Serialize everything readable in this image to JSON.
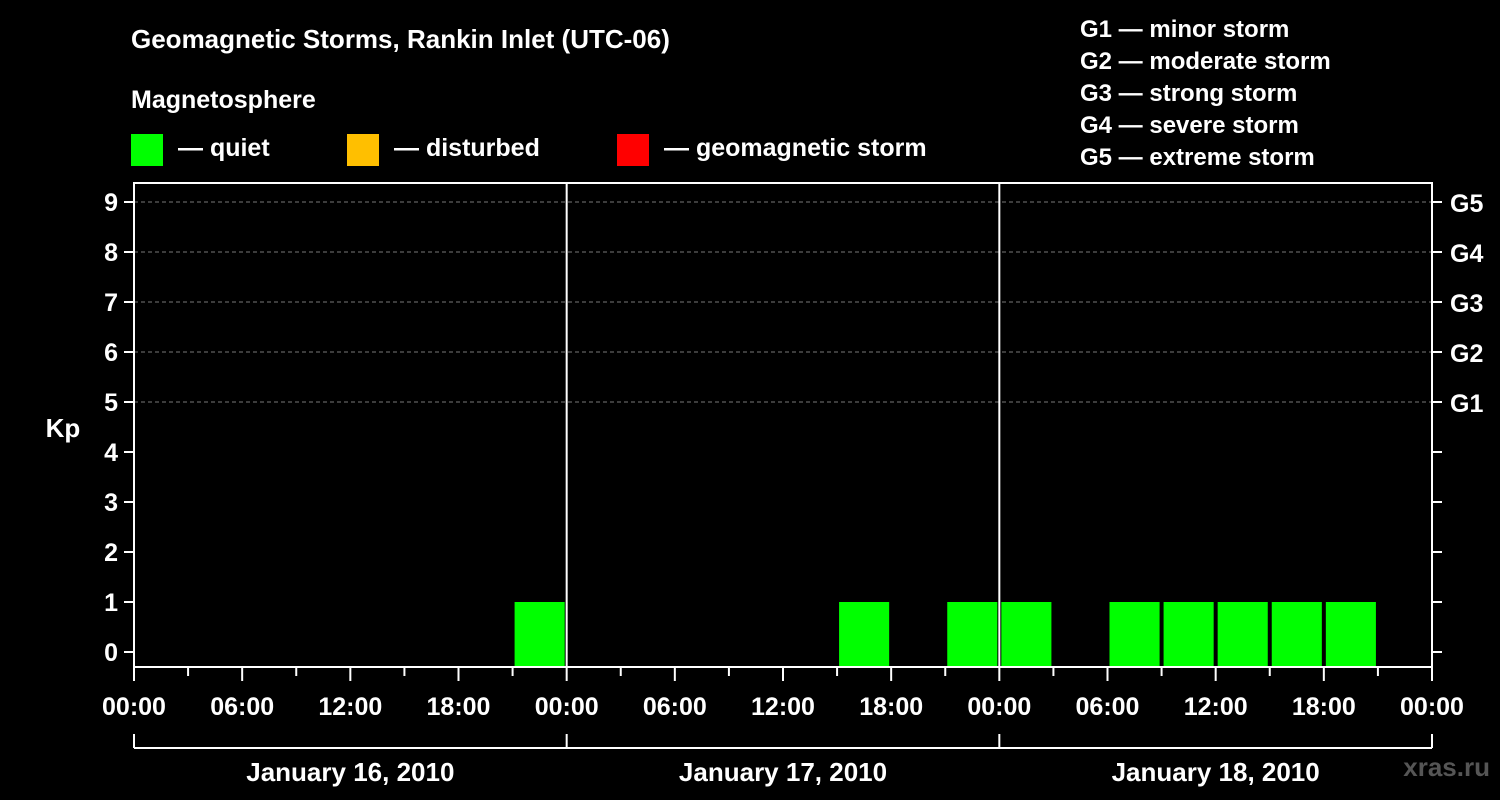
{
  "title": "Geomagnetic Storms, Rankin Inlet (UTC-06)",
  "magnetosphere_label": "Magnetosphere",
  "legend": [
    {
      "label": "— quiet",
      "color": "#00ff00"
    },
    {
      "label": "— disturbed",
      "color": "#ffbf00"
    },
    {
      "label": "— geomagnetic storm",
      "color": "#ff0000"
    }
  ],
  "g_scale": [
    "G1 — minor storm",
    "G2 — moderate storm",
    "G3 — strong storm",
    "G4 — severe storm",
    "G5 — extreme storm"
  ],
  "credit": "xras.ru",
  "chart_data": {
    "type": "bar",
    "ylabel": "Kp",
    "ylim": [
      0,
      9
    ],
    "y_ticks": [
      0,
      1,
      2,
      3,
      4,
      5,
      6,
      7,
      8,
      9
    ],
    "right_axis_labels": [
      {
        "kp": 5,
        "label": "G1"
      },
      {
        "kp": 6,
        "label": "G2"
      },
      {
        "kp": 7,
        "label": "G3"
      },
      {
        "kp": 8,
        "label": "G4"
      },
      {
        "kp": 9,
        "label": "G5"
      }
    ],
    "x_tick_labels": [
      "00:00",
      "06:00",
      "12:00",
      "18:00",
      "00:00",
      "06:00",
      "12:00",
      "18:00",
      "00:00",
      "06:00",
      "12:00",
      "18:00",
      "00:00"
    ],
    "days": [
      "January 16, 2010",
      "January 17, 2010",
      "January 18, 2010"
    ],
    "grid": "dashed horizontal at Kp 5-9",
    "bars": [
      {
        "day": "January 16, 2010",
        "start_hour": 21,
        "kp": 1,
        "status": "quiet"
      },
      {
        "day": "January 17, 2010",
        "start_hour": 15,
        "kp": 1,
        "status": "quiet"
      },
      {
        "day": "January 17, 2010",
        "start_hour": 21,
        "kp": 1,
        "status": "quiet"
      },
      {
        "day": "January 18, 2010",
        "start_hour": 0,
        "kp": 1,
        "status": "quiet"
      },
      {
        "day": "January 18, 2010",
        "start_hour": 6,
        "kp": 1,
        "status": "quiet"
      },
      {
        "day": "January 18, 2010",
        "start_hour": 9,
        "kp": 1,
        "status": "quiet"
      },
      {
        "day": "January 18, 2010",
        "start_hour": 12,
        "kp": 1,
        "status": "quiet"
      },
      {
        "day": "January 18, 2010",
        "start_hour": 15,
        "kp": 1,
        "status": "quiet"
      },
      {
        "day": "January 18, 2010",
        "start_hour": 18,
        "kp": 1,
        "status": "quiet"
      }
    ]
  }
}
